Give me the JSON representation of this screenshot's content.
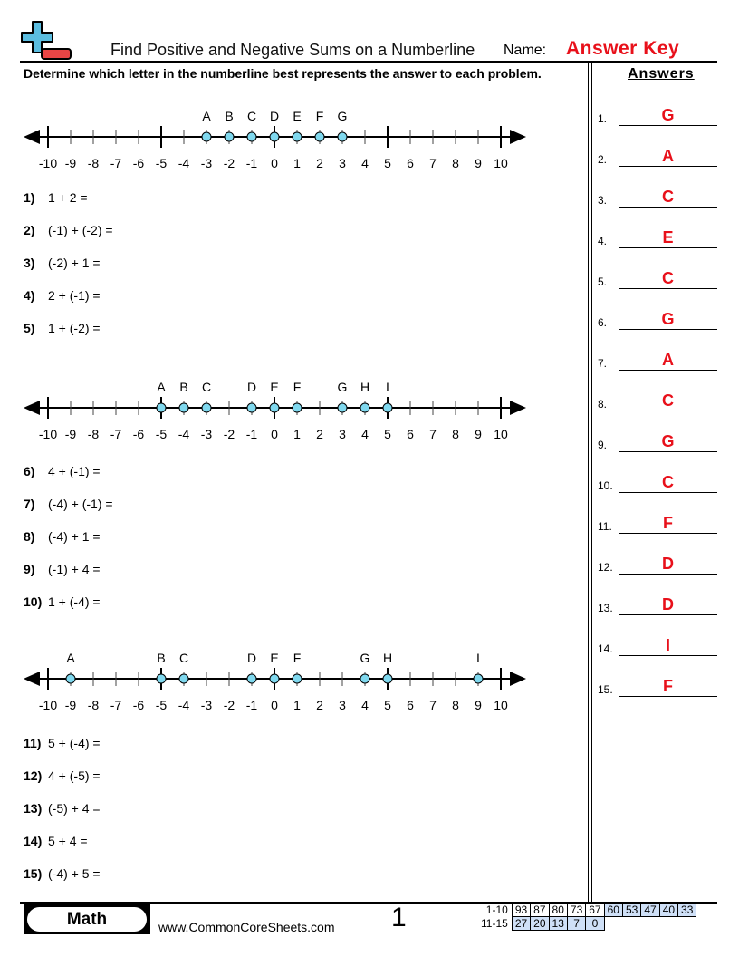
{
  "header": {
    "title": "Find Positive and Negative Sums on a Numberline",
    "name_label": "Name:",
    "name_value": "Answer Key",
    "instructions": "Determine which letter in the numberline best represents the answer to each problem.",
    "answers_heading": "Answers"
  },
  "numberlines": [
    {
      "ticks": [
        -10,
        -9,
        -8,
        -7,
        -6,
        -5,
        -4,
        -3,
        -2,
        -1,
        0,
        1,
        2,
        3,
        4,
        5,
        6,
        7,
        8,
        9,
        10
      ],
      "points": [
        {
          "letter": "A",
          "value": -3
        },
        {
          "letter": "B",
          "value": -2
        },
        {
          "letter": "C",
          "value": -1
        },
        {
          "letter": "D",
          "value": 0
        },
        {
          "letter": "E",
          "value": 1
        },
        {
          "letter": "F",
          "value": 2
        },
        {
          "letter": "G",
          "value": 3
        }
      ]
    },
    {
      "ticks": [
        -10,
        -9,
        -8,
        -7,
        -6,
        -5,
        -4,
        -3,
        -2,
        -1,
        0,
        1,
        2,
        3,
        4,
        5,
        6,
        7,
        8,
        9,
        10
      ],
      "points": [
        {
          "letter": "A",
          "value": -5
        },
        {
          "letter": "B",
          "value": -4
        },
        {
          "letter": "C",
          "value": -3
        },
        {
          "letter": "D",
          "value": -1
        },
        {
          "letter": "E",
          "value": 0
        },
        {
          "letter": "F",
          "value": 1
        },
        {
          "letter": "G",
          "value": 3
        },
        {
          "letter": "H",
          "value": 4
        },
        {
          "letter": "I",
          "value": 5
        }
      ]
    },
    {
      "ticks": [
        -10,
        -9,
        -8,
        -7,
        -6,
        -5,
        -4,
        -3,
        -2,
        -1,
        0,
        1,
        2,
        3,
        4,
        5,
        6,
        7,
        8,
        9,
        10
      ],
      "points": [
        {
          "letter": "A",
          "value": -9
        },
        {
          "letter": "B",
          "value": -5
        },
        {
          "letter": "C",
          "value": -4
        },
        {
          "letter": "D",
          "value": -1
        },
        {
          "letter": "E",
          "value": 0
        },
        {
          "letter": "F",
          "value": 1
        },
        {
          "letter": "G",
          "value": 4
        },
        {
          "letter": "H",
          "value": 5
        },
        {
          "letter": "I",
          "value": 9
        }
      ]
    }
  ],
  "problems": [
    {
      "num": "1)",
      "text": "1 + 2 ="
    },
    {
      "num": "2)",
      "text": "(-1) + (-2) ="
    },
    {
      "num": "3)",
      "text": "(-2) + 1 ="
    },
    {
      "num": "4)",
      "text": "2 + (-1) ="
    },
    {
      "num": "5)",
      "text": "1 + (-2) ="
    },
    {
      "num": "6)",
      "text": "4 + (-1) ="
    },
    {
      "num": "7)",
      "text": "(-4) + (-1) ="
    },
    {
      "num": "8)",
      "text": "(-4) + 1 ="
    },
    {
      "num": "9)",
      "text": "(-1) + 4 ="
    },
    {
      "num": "10)",
      "text": "1 + (-4) ="
    },
    {
      "num": "11)",
      "text": "5 + (-4) ="
    },
    {
      "num": "12)",
      "text": "4 + (-5) ="
    },
    {
      "num": "13)",
      "text": "(-5) + 4 ="
    },
    {
      "num": "14)",
      "text": "5 + 4 ="
    },
    {
      "num": "15)",
      "text": "(-4) + 5 ="
    }
  ],
  "answers": [
    {
      "num": "1.",
      "value": "G"
    },
    {
      "num": "2.",
      "value": "A"
    },
    {
      "num": "3.",
      "value": "C"
    },
    {
      "num": "4.",
      "value": "E"
    },
    {
      "num": "5.",
      "value": "C"
    },
    {
      "num": "6.",
      "value": "G"
    },
    {
      "num": "7.",
      "value": "A"
    },
    {
      "num": "8.",
      "value": "C"
    },
    {
      "num": "9.",
      "value": "G"
    },
    {
      "num": "10.",
      "value": "C"
    },
    {
      "num": "11.",
      "value": "F"
    },
    {
      "num": "12.",
      "value": "D"
    },
    {
      "num": "13.",
      "value": "D"
    },
    {
      "num": "14.",
      "value": "I"
    },
    {
      "num": "15.",
      "value": "F"
    }
  ],
  "footer": {
    "subject": "Math",
    "website": "www.CommonCoreSheets.com",
    "page": "1",
    "score_rows": [
      {
        "label": "1-10",
        "values": [
          "93",
          "87",
          "80",
          "73",
          "67",
          "60",
          "53",
          "47",
          "40",
          "33"
        ]
      },
      {
        "label": "11-15",
        "values": [
          "27",
          "20",
          "13",
          "7",
          "0"
        ]
      }
    ]
  },
  "colors": {
    "answer_red": "#e8101a",
    "point_fill": "#7fd8ee",
    "logo_blue": "#5bbde0",
    "logo_red": "#e84545"
  }
}
